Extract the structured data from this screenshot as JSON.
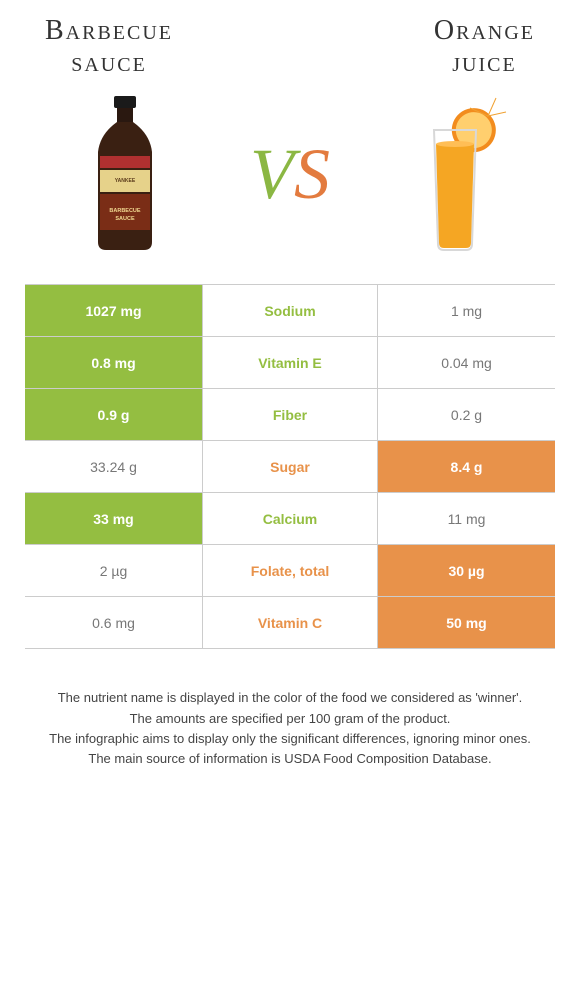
{
  "left": {
    "title_line1": "Barbecue",
    "title_line2": "sauce",
    "color": "#94be41"
  },
  "right": {
    "title_line1": "Orange",
    "title_line2": "juice",
    "color": "#e8924a"
  },
  "vs": {
    "v": "V",
    "s": "S",
    "v_color": "#8bb743",
    "s_color": "#e37b3f"
  },
  "rows": [
    {
      "name": "Sodium",
      "left": "1027 mg",
      "right": "1 mg",
      "winner": "left"
    },
    {
      "name": "Vitamin E",
      "left": "0.8 mg",
      "right": "0.04 mg",
      "winner": "left"
    },
    {
      "name": "Fiber",
      "left": "0.9 g",
      "right": "0.2 g",
      "winner": "left"
    },
    {
      "name": "Sugar",
      "left": "33.24 g",
      "right": "8.4 g",
      "winner": "right"
    },
    {
      "name": "Calcium",
      "left": "33 mg",
      "right": "11 mg",
      "winner": "left"
    },
    {
      "name": "Folate, total",
      "left": "2 µg",
      "right": "30 µg",
      "winner": "right"
    },
    {
      "name": "Vitamin C",
      "left": "0.6 mg",
      "right": "50 mg",
      "winner": "right"
    }
  ],
  "footnotes": [
    "The nutrient name is displayed in the color of the food we considered as 'winner'.",
    "The amounts are specified per 100 gram of the product.",
    "The infographic aims to display only the significant differences, ignoring minor ones.",
    "The main source of information is USDA Food Composition Database."
  ],
  "svg": {
    "bbq": {
      "bottle": "#3a2012",
      "cap": "#1a1a1a",
      "label_top": "#b33",
      "label_mid": "#e6d28a",
      "label_bot": "#7a2d16",
      "label_text": "BARBECUE\nSAUCE"
    },
    "oj": {
      "juice": "#f5a623",
      "glass_stroke": "#e0e0e0",
      "orange": "#f28c1e",
      "orange_inner": "#ffcf6e"
    }
  }
}
